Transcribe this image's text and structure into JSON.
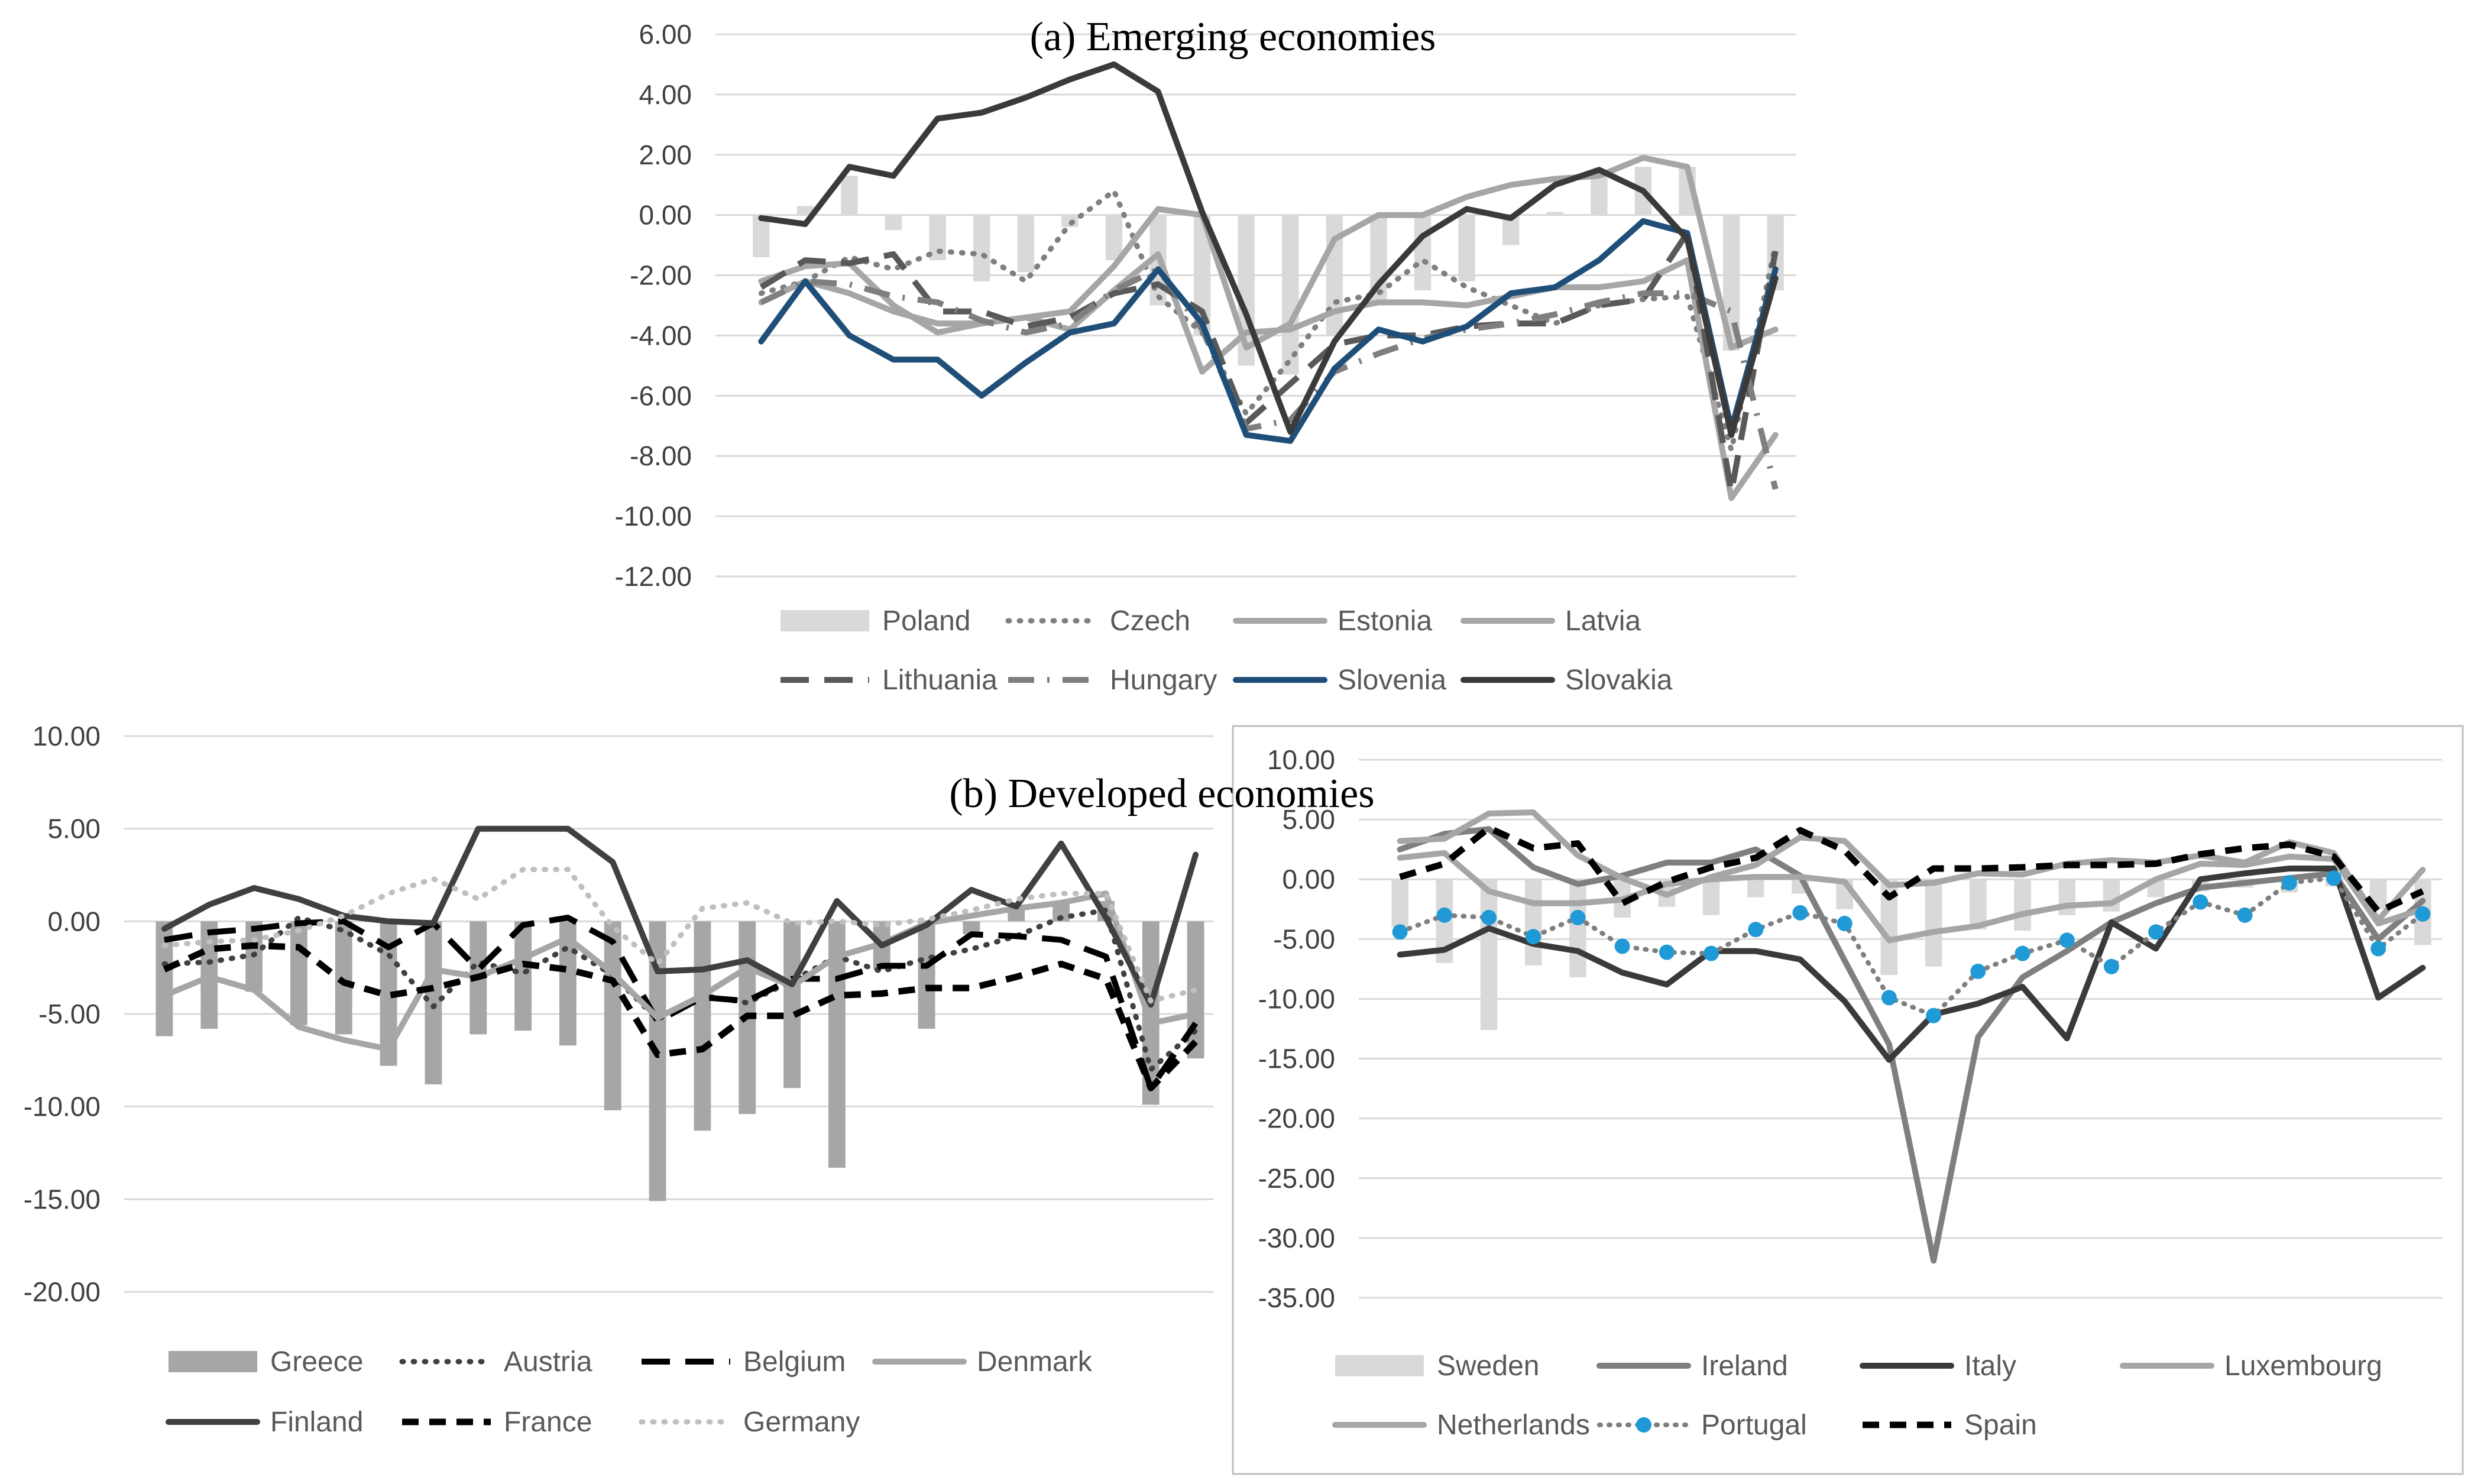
{
  "chart_data": [
    {
      "type": "line",
      "title": "(a) Emerging economies",
      "ylim": [
        -12,
        6
      ],
      "yticks": [
        "6.00",
        "4.00",
        "2.00",
        "0.00",
        "-2.00",
        "-4.00",
        "-6.00",
        "-8.00",
        "-10.00",
        "-12.00"
      ],
      "series": [
        {
          "name": "Poland",
          "kind": "bar",
          "color": "#d9d9d9",
          "values": [
            -1.4,
            0.3,
            1.3,
            -0.5,
            -1.5,
            -2.2,
            -1.9,
            -0.4,
            -1.5,
            -3.0,
            -4.0,
            -5.0,
            -5.3,
            -4.0,
            -3.0,
            -2.5,
            -2.2,
            -1.0,
            0.1,
            1.5,
            1.6,
            1.6,
            -4.5,
            -2.5
          ]
        },
        {
          "name": "Czech",
          "kind": "dotted",
          "color": "#7f7f7f",
          "values": [
            -2.6,
            -2.2,
            -1.4,
            -1.8,
            -1.2,
            -1.3,
            -2.2,
            -0.3,
            0.8,
            -2.7,
            -3.9,
            -6.6,
            -4.8,
            -2.9,
            -2.6,
            -1.5,
            -2.4,
            -3.0,
            -3.6,
            -3.0,
            -2.8,
            -2.7,
            -7.8,
            -1.0
          ]
        },
        {
          "name": "Estonia",
          "kind": "solid",
          "color": "#a6a6a6",
          "values": [
            -2.2,
            -1.7,
            -1.6,
            -3.0,
            -3.9,
            -3.6,
            -3.4,
            -3.2,
            -1.7,
            0.2,
            0.0,
            -4.4,
            -3.6,
            -0.8,
            0.0,
            0.0,
            0.6,
            1.0,
            1.2,
            1.3,
            1.9,
            1.6,
            -4.4,
            -3.8
          ]
        },
        {
          "name": "Latvia",
          "kind": "solid",
          "color": "#a6a6a6",
          "values": [
            -2.9,
            -2.2,
            -2.6,
            -3.2,
            -3.6,
            -3.6,
            -3.4,
            -3.8,
            -2.5,
            -1.3,
            -5.2,
            -3.9,
            -3.8,
            -3.2,
            -2.9,
            -2.9,
            -3.0,
            -2.7,
            -2.4,
            -2.4,
            -2.2,
            -1.5,
            -9.4,
            -7.3
          ]
        },
        {
          "name": "Lithuania",
          "kind": "longdash",
          "color": "#595959",
          "values": [
            -2.4,
            -1.5,
            -1.6,
            -1.3,
            -3.2,
            -3.2,
            -3.7,
            -3.4,
            -2.6,
            -2.3,
            -3.2,
            -6.9,
            -5.6,
            -4.3,
            -4.0,
            -4.0,
            -3.7,
            -3.6,
            -3.6,
            -3.0,
            -2.8,
            -0.6,
            -9.2,
            -1.2
          ]
        },
        {
          "name": "Hungary",
          "kind": "dashdot",
          "color": "#7f7f7f",
          "values": [
            -2.9,
            -2.2,
            -2.3,
            -2.7,
            -2.9,
            -3.5,
            -3.9,
            -3.6,
            -2.5,
            -1.8,
            -3.8,
            -7.1,
            -6.8,
            -5.2,
            -4.6,
            -4.1,
            -3.8,
            -3.6,
            -3.3,
            -2.9,
            -2.6,
            -2.6,
            -3.2,
            -9.1
          ]
        },
        {
          "name": "Slovenia",
          "kind": "solid",
          "color": "#1f4e79",
          "values": [
            -4.2,
            -2.2,
            -4.0,
            -4.8,
            -4.8,
            -6.0,
            -4.9,
            -3.9,
            -3.6,
            -1.8,
            -3.6,
            -7.3,
            -7.5,
            -5.1,
            -3.8,
            -4.2,
            -3.7,
            -2.6,
            -2.4,
            -1.5,
            -0.2,
            -0.6,
            -7.1,
            -1.8
          ]
        },
        {
          "name": "Slovakia",
          "kind": "solid",
          "color": "#3a3a3a",
          "values": [
            -0.1,
            -0.3,
            1.6,
            1.3,
            3.2,
            3.4,
            3.9,
            4.5,
            5.0,
            4.1,
            0.1,
            -3.3,
            -7.2,
            -4.2,
            -2.3,
            -0.7,
            0.2,
            -0.1,
            1.0,
            1.5,
            0.8,
            -0.8,
            -7.3,
            -2.1
          ]
        }
      ]
    },
    {
      "type": "line",
      "title": "(b) Developed economies",
      "ylim": [
        -20,
        10
      ],
      "yticks": [
        "10.00",
        "5.00",
        "0.00",
        "-5.00",
        "-10.00",
        "-15.00",
        "-20.00"
      ],
      "series": [
        {
          "name": "Greece",
          "kind": "bar",
          "color": "#a6a6a6",
          "values": [
            -6.2,
            -5.8,
            -3.8,
            -5.6,
            -6.1,
            -7.8,
            -8.8,
            -6.1,
            -5.9,
            -6.7,
            -10.2,
            -15.1,
            -11.3,
            -10.4,
            -9.0,
            -13.3,
            -2.6,
            -5.8,
            -0.7,
            0.6,
            1.0,
            1.1,
            -9.9,
            -7.4
          ]
        },
        {
          "name": "Austria",
          "kind": "dotted",
          "color": "#404040",
          "values": [
            -2.3,
            -2.2,
            -1.8,
            0.2,
            -0.5,
            -1.8,
            -4.6,
            -2.2,
            -2.8,
            -1.4,
            -2.9,
            -5.3,
            -4.0,
            -4.4,
            -3.2,
            -1.9,
            -2.7,
            -2.0,
            -1.5,
            -0.8,
            0.2,
            0.6,
            -8.0,
            -5.9
          ]
        },
        {
          "name": "Belgium",
          "kind": "longdash",
          "color": "#000000",
          "values": [
            -1.0,
            -0.6,
            -0.4,
            -0.1,
            0.0,
            -1.4,
            -0.1,
            -2.6,
            -0.2,
            0.2,
            -1.1,
            -5.4,
            -4.1,
            -4.3,
            -3.1,
            -3.1,
            -2.4,
            -2.4,
            -0.7,
            -0.8,
            -1.0,
            -1.9,
            -9.0,
            -5.5
          ]
        },
        {
          "name": "Denmark",
          "kind": "solid",
          "color": "#a6a6a6",
          "values": [
            -4.0,
            -3.0,
            -3.7,
            -5.7,
            -6.4,
            -6.9,
            -2.6,
            -3.0,
            -2.0,
            -0.9,
            -2.8,
            -5.2,
            -4.0,
            -2.5,
            -3.5,
            -1.9,
            -1.2,
            -0.1,
            0.3,
            0.7,
            1.0,
            1.5,
            -5.5,
            -5.0
          ]
        },
        {
          "name": "Finland",
          "kind": "solid",
          "color": "#404040",
          "values": [
            -0.4,
            0.9,
            1.8,
            1.2,
            0.3,
            0.0,
            -0.1,
            5.0,
            5.0,
            5.0,
            3.2,
            -2.7,
            -2.6,
            -2.1,
            -3.4,
            1.1,
            -1.3,
            -0.2,
            1.7,
            0.8,
            4.2,
            0.2,
            -4.5,
            3.6
          ]
        },
        {
          "name": "France",
          "kind": "shortdash",
          "color": "#000000",
          "values": [
            -2.6,
            -1.5,
            -1.3,
            -1.4,
            -3.3,
            -4.0,
            -3.6,
            -3.0,
            -2.3,
            -2.6,
            -3.2,
            -7.2,
            -6.9,
            -5.1,
            -5.1,
            -4.0,
            -3.9,
            -3.6,
            -3.6,
            -3.0,
            -2.3,
            -3.1,
            -9.0,
            -6.5
          ]
        },
        {
          "name": "Germany",
          "kind": "dotted",
          "color": "#bfbfbf",
          "values": [
            -1.3,
            -1.1,
            -1.0,
            -0.5,
            0.3,
            1.5,
            2.3,
            1.2,
            2.8,
            2.8,
            -0.3,
            -2.3,
            0.7,
            1.0,
            -0.1,
            0.0,
            -0.2,
            0.1,
            0.6,
            1.2,
            1.5,
            1.5,
            -4.3,
            -3.7
          ]
        }
      ]
    },
    {
      "type": "line",
      "title": "",
      "ylim": [
        -35,
        10
      ],
      "yticks": [
        "10.00",
        "5.00",
        "0.00",
        "-5.00",
        "-10.00",
        "-15.00",
        "-20.00",
        "-25.00",
        "-30.00",
        "-35.00"
      ],
      "series": [
        {
          "name": "Sweden",
          "kind": "bar",
          "color": "#d9d9d9",
          "values": [
            -4.0,
            -7.0,
            -12.6,
            -7.2,
            -8.2,
            -3.2,
            -2.3,
            -3.0,
            -1.5,
            -1.2,
            -2.5,
            -8.0,
            -7.3,
            -4.2,
            -4.3,
            -3.0,
            -2.7,
            -1.5,
            -1.0,
            -0.7,
            -1.1,
            -0.6,
            -2.5,
            -5.5
          ]
        },
        {
          "name": "Ireland",
          "kind": "solid",
          "color": "#7f7f7f",
          "values": [
            2.5,
            3.8,
            4.2,
            1.0,
            -0.4,
            0.3,
            1.4,
            1.4,
            2.5,
            0.3,
            -6.8,
            -13.8,
            -31.9,
            -13.2,
            -8.2,
            -6.0,
            -3.6,
            -2.0,
            -0.7,
            -0.3,
            0.1,
            0.5,
            -5.0,
            -1.8
          ]
        },
        {
          "name": "Italy",
          "kind": "solid",
          "color": "#3a3a3a",
          "values": [
            -6.3,
            -5.9,
            -4.1,
            -5.4,
            -6.0,
            -7.8,
            -8.8,
            -6.0,
            -6.0,
            -6.7,
            -10.2,
            -15.1,
            -11.3,
            -10.4,
            -9.0,
            -13.3,
            -3.6,
            -5.8,
            0.0,
            0.5,
            0.9,
            0.9,
            -9.9,
            -7.4
          ]
        },
        {
          "name": "Luxembourg",
          "kind": "solid",
          "color": "#a6a6a6",
          "values": [
            3.2,
            3.4,
            5.5,
            5.6,
            2.0,
            0.1,
            -1.3,
            0.2,
            1.2,
            3.5,
            3.2,
            -0.5,
            -0.3,
            0.5,
            0.4,
            1.3,
            1.6,
            1.4,
            2.0,
            1.4,
            3.1,
            2.2,
            -3.4,
            0.8
          ]
        },
        {
          "name": "Netherlands",
          "kind": "solid",
          "color": "#a6a6a6",
          "values": [
            1.8,
            2.2,
            -1.0,
            -2.0,
            -2.0,
            -1.7,
            -0.4,
            0.0,
            0.2,
            0.2,
            -0.2,
            -5.1,
            -4.4,
            -3.9,
            -2.9,
            -2.2,
            -2.0,
            0.0,
            1.3,
            1.2,
            1.9,
            1.7,
            -3.7,
            -2.5
          ]
        },
        {
          "name": "Portugal",
          "kind": "markers",
          "color": "#1f9ad6",
          "values": [
            -4.4,
            -3.0,
            -3.2,
            -4.8,
            -3.2,
            -5.6,
            -6.1,
            -6.2,
            -4.2,
            -2.8,
            -3.7,
            -9.9,
            -11.4,
            -7.7,
            -6.2,
            -5.1,
            -7.3,
            -4.4,
            -1.9,
            -3.0,
            -0.3,
            0.1,
            -5.8,
            -2.9
          ]
        },
        {
          "name": "Spain",
          "kind": "shortdash",
          "color": "#000000",
          "values": [
            0.2,
            1.3,
            4.3,
            2.6,
            3.0,
            -2.0,
            -0.2,
            1.0,
            1.8,
            4.1,
            2.4,
            -1.5,
            0.9,
            0.9,
            1.0,
            1.2,
            1.2,
            1.3,
            2.1,
            2.6,
            2.9,
            1.9,
            -2.7,
            -1.0
          ]
        }
      ]
    }
  ]
}
